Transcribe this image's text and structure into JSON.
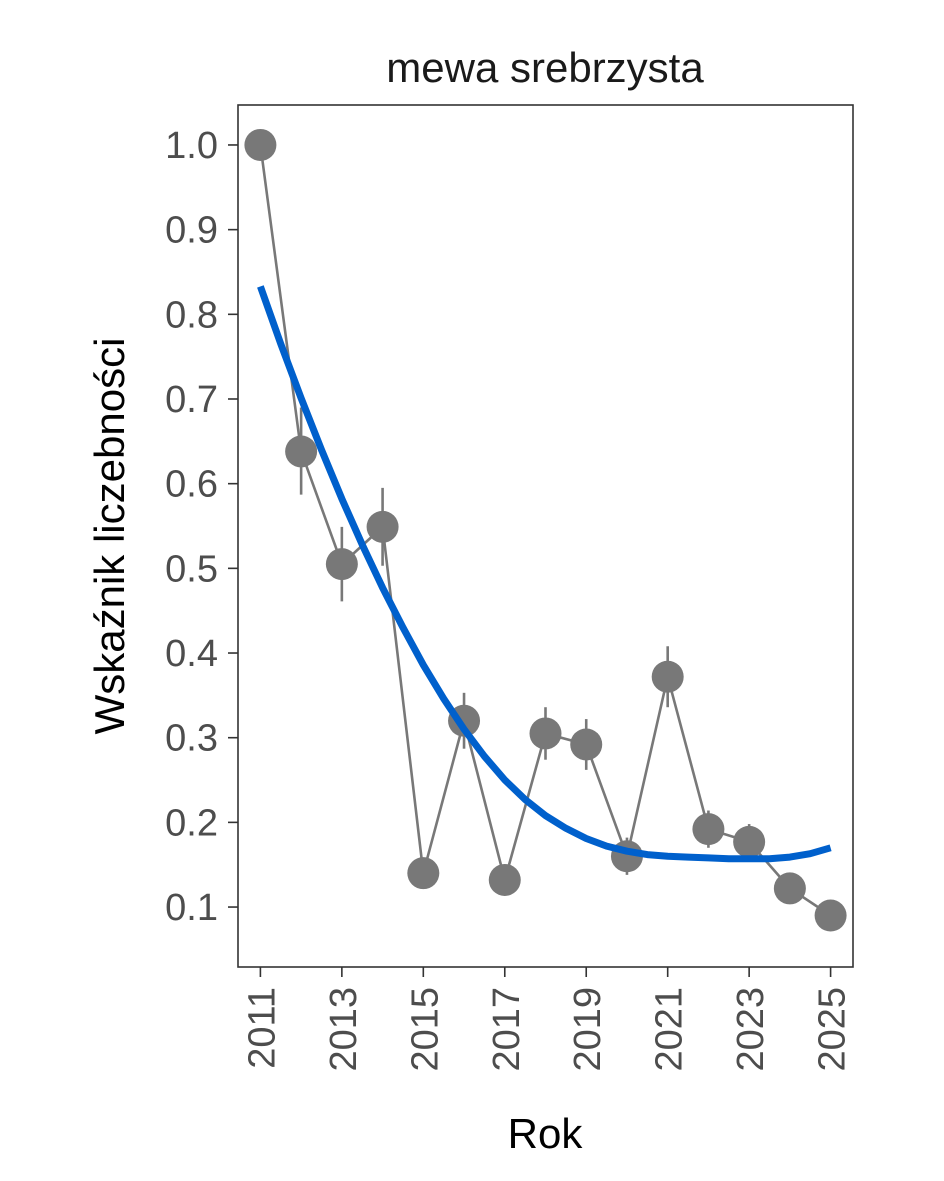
{
  "chart_data": {
    "type": "line",
    "title": "mewa srebrzysta",
    "xlabel": "Rok",
    "ylabel": "Wskaźnik liczebności",
    "xlim": [
      2010.45,
      2025.55
    ],
    "ylim": [
      0.0292,
      1.0472
    ],
    "x_ticks": [
      2011,
      2013,
      2015,
      2017,
      2019,
      2021,
      2023,
      2025
    ],
    "x_tick_labels": [
      "2011",
      "2013",
      "2015",
      "2017",
      "2019",
      "2021",
      "2023",
      "2025"
    ],
    "y_ticks": [
      0.1,
      0.2,
      0.3,
      0.4,
      0.5,
      0.6,
      0.7,
      0.8,
      0.9,
      1.0
    ],
    "y_tick_labels": [
      "0.1",
      "0.2",
      "0.3",
      "0.4",
      "0.5",
      "0.6",
      "0.7",
      "0.8",
      "0.9",
      "1.0"
    ],
    "grid": false,
    "series": [
      {
        "type": "points-with-errorbars",
        "color": "#787878",
        "x": [
          2011,
          2012,
          2013,
          2014,
          2015,
          2016,
          2017,
          2018,
          2019,
          2020,
          2021,
          2022,
          2023,
          2024,
          2025
        ],
        "y": [
          1.0,
          0.638,
          0.505,
          0.549,
          0.14,
          0.32,
          0.132,
          0.305,
          0.292,
          0.16,
          0.372,
          0.192,
          0.177,
          0.122,
          0.09
        ],
        "y_low": [
          1.0,
          0.587,
          0.461,
          0.503,
          0.126,
          0.287,
          0.12,
          0.274,
          0.262,
          0.138,
          0.336,
          0.17,
          0.156,
          0.108,
          0.08
        ],
        "y_high": [
          1.0,
          0.69,
          0.549,
          0.595,
          0.154,
          0.353,
          0.144,
          0.336,
          0.322,
          0.182,
          0.408,
          0.214,
          0.198,
          0.136,
          0.1
        ]
      },
      {
        "type": "trend",
        "color": "#0060cc",
        "x": [
          2011,
          2011.5,
          2012,
          2012.5,
          2013,
          2013.5,
          2014,
          2014.5,
          2015,
          2015.5,
          2016,
          2016.5,
          2017,
          2017.5,
          2018,
          2018.5,
          2019,
          2019.5,
          2020,
          2020.5,
          2021,
          2021.5,
          2022,
          2022.5,
          2023,
          2023.5,
          2024,
          2024.5,
          2025
        ],
        "y": [
          0.833,
          0.765,
          0.701,
          0.64,
          0.582,
          0.528,
          0.477,
          0.43,
          0.386,
          0.346,
          0.31,
          0.278,
          0.25,
          0.227,
          0.208,
          0.193,
          0.181,
          0.172,
          0.166,
          0.162,
          0.16,
          0.159,
          0.158,
          0.157,
          0.157,
          0.157,
          0.159,
          0.163,
          0.17
        ]
      }
    ]
  }
}
